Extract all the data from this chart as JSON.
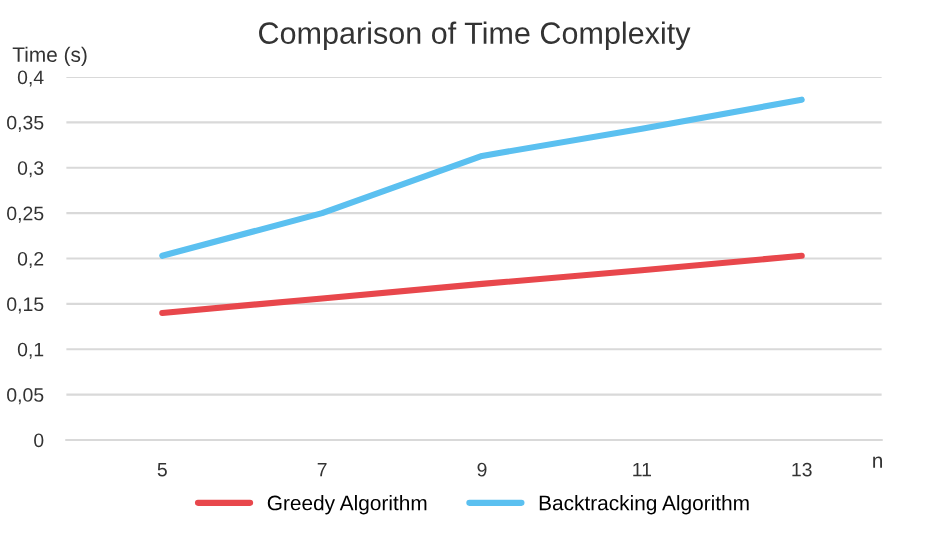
{
  "chart_data": {
    "type": "line",
    "title": "Comparison of Time Complexity",
    "xlabel": "n",
    "ylabel": "Time (s)",
    "categories": [
      "5",
      "7",
      "9",
      "11",
      "13"
    ],
    "series": [
      {
        "name": "Greedy Algorithm",
        "color": "#e8474c",
        "values": [
          0.14,
          0.156,
          0.172,
          0.187,
          0.203
        ]
      },
      {
        "name": "Backtracking Algorithm",
        "color": "#5bc0f0",
        "values": [
          0.203,
          0.25,
          0.313,
          0.343,
          0.375
        ]
      }
    ],
    "ylim": [
      0,
      0.4
    ],
    "yticks": [
      {
        "value": 0,
        "label": "0"
      },
      {
        "value": 0.05,
        "label": "0,05"
      },
      {
        "value": 0.1,
        "label": "0,1"
      },
      {
        "value": 0.15,
        "label": "0,15"
      },
      {
        "value": 0.2,
        "label": "0,2"
      },
      {
        "value": 0.25,
        "label": "0,25"
      },
      {
        "value": 0.3,
        "label": "0,3"
      },
      {
        "value": 0.35,
        "label": "0,35"
      },
      {
        "value": 0.4,
        "label": "0,4"
      }
    ],
    "grid": "y",
    "legend": "bottom",
    "marker": "none",
    "line_style": "solid"
  }
}
